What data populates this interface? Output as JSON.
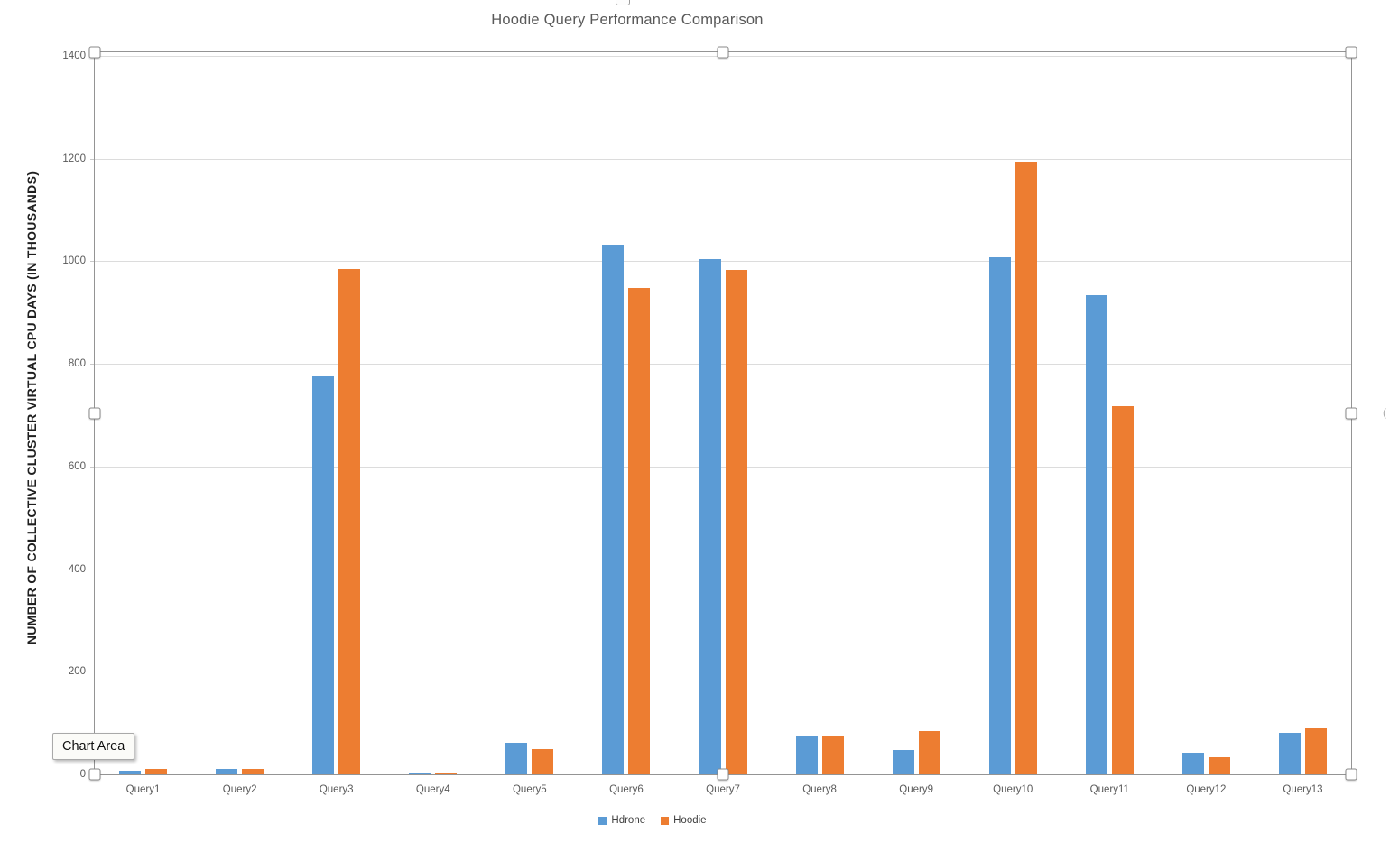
{
  "chart_data": {
    "type": "bar",
    "title": "Hoodie Query Performance Comparison",
    "ylabel": "NUMBER OF COLLECTIVE CLUSTER VIRTUAL CPU DAYS (IN THOUSANDS)",
    "xlabel": "",
    "categories": [
      "Query1",
      "Query2",
      "Query3",
      "Query4",
      "Query5",
      "Query6",
      "Query7",
      "Query8",
      "Query9",
      "Query10",
      "Query11",
      "Query12",
      "Query13"
    ],
    "series": [
      {
        "name": "Hdrone",
        "color": "#5B9BD5",
        "values": [
          7,
          10,
          776,
          4,
          62,
          1030,
          1005,
          74,
          48,
          1008,
          934,
          42,
          81
        ]
      },
      {
        "name": "Hoodie",
        "color": "#ED7D31",
        "values": [
          11,
          10,
          985,
          4,
          50,
          948,
          984,
          74,
          85,
          1193,
          717,
          33,
          90
        ]
      }
    ],
    "ylim": [
      0,
      1400
    ],
    "ytick_step": 200,
    "grid": "horizontal",
    "legend_position": "bottom"
  },
  "tooltip": {
    "label": "Chart Area"
  },
  "selection": {
    "handles": [
      "top-left",
      "top-center",
      "top-right",
      "mid-left",
      "mid-right",
      "bottom-left",
      "bottom-center",
      "bottom-right"
    ],
    "partial_top_handle": true
  },
  "colors": {
    "hdrone": "#5B9BD5",
    "hoodie": "#ED7D31",
    "gridline": "#dcdcdc",
    "axis_text": "#595959",
    "title_text": "#595959",
    "selection_border": "#949494"
  }
}
